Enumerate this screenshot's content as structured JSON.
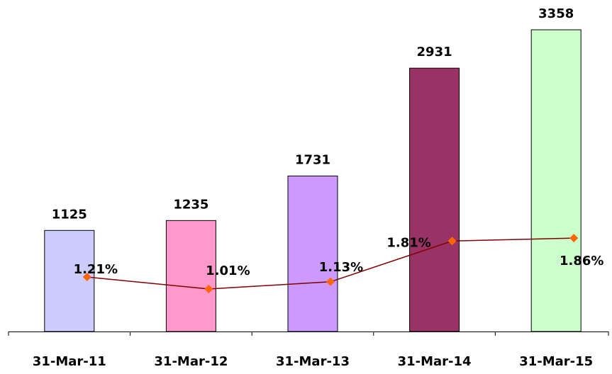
{
  "chart_data": {
    "type": "bar",
    "categories": [
      "31-Mar-11",
      "31-Mar-12",
      "31-Mar-13",
      "31-Mar-14",
      "31-Mar-15"
    ],
    "values": [
      1125,
      1235,
      1731,
      2931,
      3358
    ],
    "colors": [
      "#ccccff",
      "#ff99cc",
      "#cc99ff",
      "#993366",
      "#ccffcc"
    ],
    "ylim": [
      0,
      3400
    ],
    "line": {
      "type": "line",
      "axis": "y2",
      "values": [
        1.21,
        1.01,
        1.13,
        1.81,
        1.86
      ],
      "value_labels": [
        "1.21%",
        "1.01%",
        "1.13%",
        "1.81%",
        "1.86%"
      ],
      "color": "#800000",
      "marker_color": "#ff6600"
    },
    "y2lim": [
      0.3,
      5.4
    ]
  }
}
